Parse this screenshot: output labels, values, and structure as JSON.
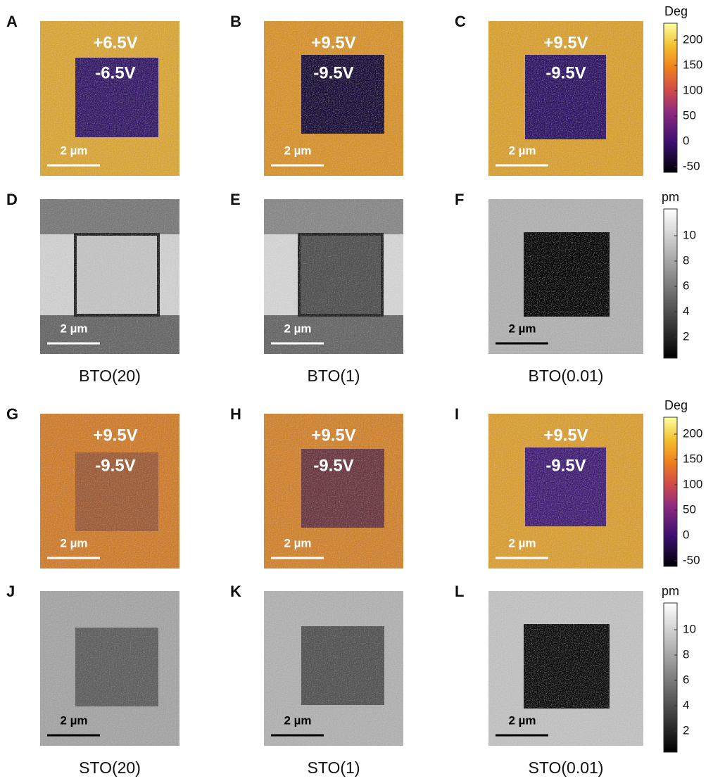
{
  "panels": [
    {
      "letter": "A",
      "outer": "+6.5V",
      "inner": "-6.5V",
      "scale_bar": "2 µm"
    },
    {
      "letter": "B",
      "outer": "+9.5V",
      "inner": "-9.5V",
      "scale_bar": "2 µm"
    },
    {
      "letter": "C",
      "outer": "+9.5V",
      "inner": "-9.5V",
      "scale_bar": "2 µm"
    },
    {
      "letter": "D",
      "scale_bar": "2 µm",
      "caption": "BTO(20)"
    },
    {
      "letter": "E",
      "scale_bar": "2 µm",
      "caption": "BTO(1)"
    },
    {
      "letter": "F",
      "scale_bar": "2 µm",
      "caption": "BTO(0.01)"
    },
    {
      "letter": "G",
      "outer": "+9.5V",
      "inner": "-9.5V",
      "scale_bar": "2 µm"
    },
    {
      "letter": "H",
      "outer": "+9.5V",
      "inner": "-9.5V",
      "scale_bar": "2 µm"
    },
    {
      "letter": "I",
      "outer": "+9.5V",
      "inner": "-9.5V",
      "scale_bar": "2 µm"
    },
    {
      "letter": "J",
      "scale_bar": "2 µm",
      "caption": "STO(20)"
    },
    {
      "letter": "K",
      "scale_bar": "2 µm",
      "caption": "STO(1)"
    },
    {
      "letter": "L",
      "scale_bar": "2 µm",
      "caption": "STO(0.01)"
    }
  ],
  "colorbars": [
    {
      "unit": "Deg",
      "ticks": [
        200,
        150,
        100,
        50,
        0,
        -50
      ]
    },
    {
      "unit": "pm",
      "ticks": [
        10,
        8,
        6,
        4,
        2
      ]
    },
    {
      "unit": "Deg",
      "ticks": [
        200,
        150,
        100,
        50,
        0,
        -50
      ]
    },
    {
      "unit": "pm",
      "ticks": [
        10,
        8,
        6,
        4,
        2
      ]
    }
  ]
}
